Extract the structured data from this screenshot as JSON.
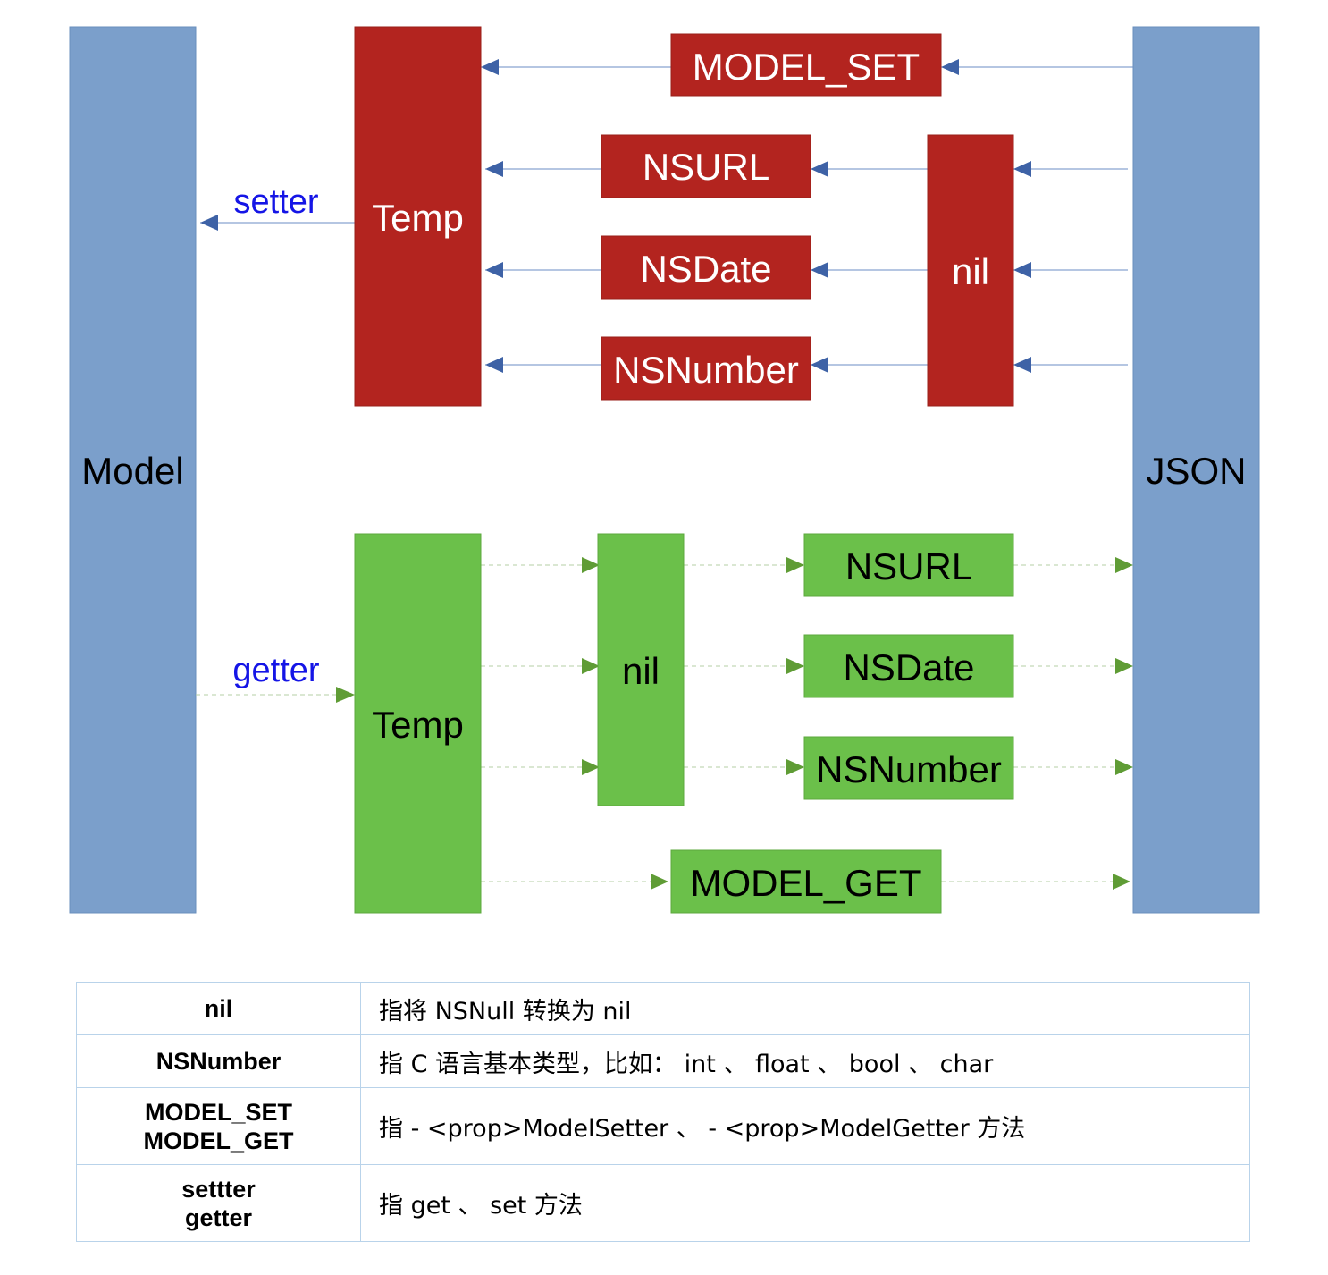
{
  "diagram": {
    "model_label": "Model",
    "json_label": "JSON",
    "setter_label": "setter",
    "getter_label": "getter",
    "top_temp": "Temp",
    "top_model_set": "MODEL_SET",
    "top_nsurl": "NSURL",
    "top_nsdate": "NSDate",
    "top_nsnumber": "NSNumber",
    "top_nil": "nil",
    "bottom_temp": "Temp",
    "bottom_nil": "nil",
    "bottom_nsurl": "NSURL",
    "bottom_nsdate": "NSDate",
    "bottom_nsnumber": "NSNumber",
    "bottom_model_get": "MODEL_GET"
  },
  "colors": {
    "blue_column": "#7b9fcb",
    "red_box": "#b3241f",
    "green_box": "#6bc04a",
    "blue_arrow": "#3e62a6",
    "green_arrow": "#5f9c35",
    "label_blue": "#1515e6",
    "table_border": "#b9d3ea"
  },
  "legend": {
    "rows": [
      {
        "term": [
          "nil"
        ],
        "desc": "指将 NSNull 转换为 nil"
      },
      {
        "term": [
          "NSNumber"
        ],
        "desc": "指 C 语言基本类型，比如： int 、 float 、 bool 、 char"
      },
      {
        "term": [
          "MODEL_SET",
          "MODEL_GET"
        ],
        "desc": "指 - <prop>ModelSetter 、 - <prop>ModelGetter 方法"
      },
      {
        "term": [
          "settter",
          "getter"
        ],
        "desc": "指 get 、 set 方法"
      }
    ]
  }
}
